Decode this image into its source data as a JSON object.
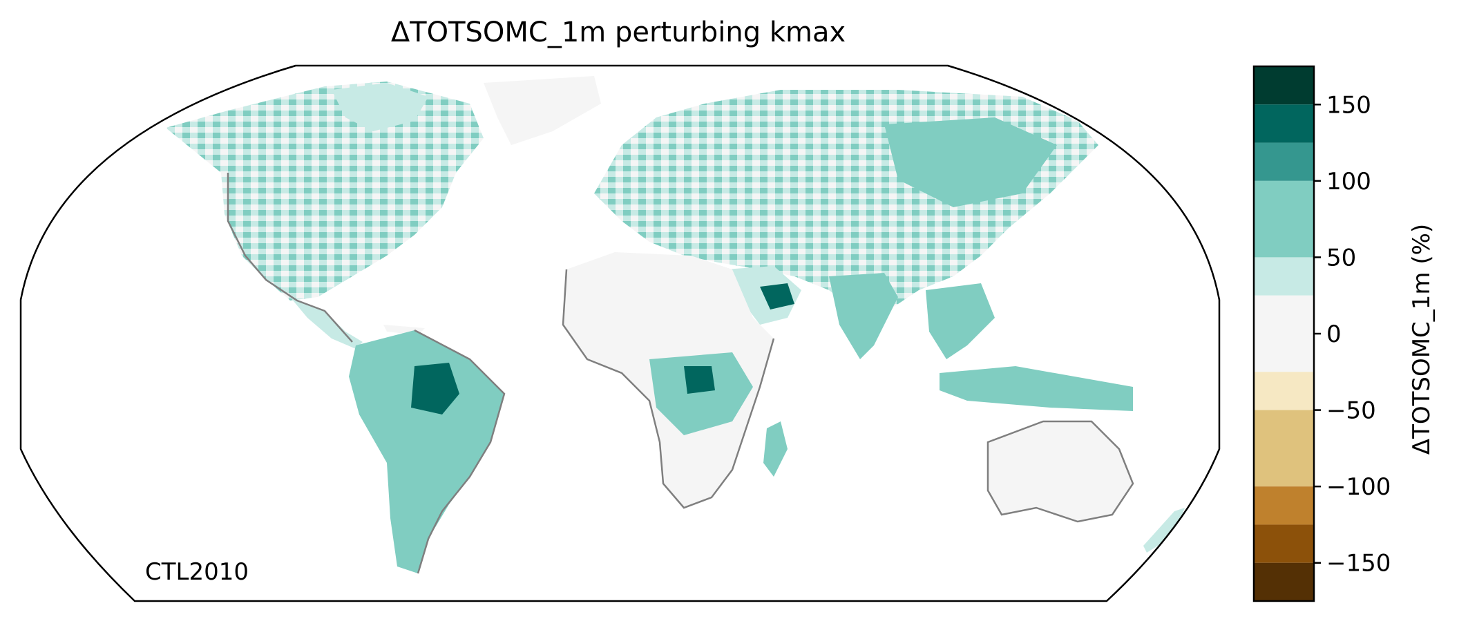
{
  "title": "ΔTOTSOMC_1m perturbing kmax",
  "corner_label": "CTL2010",
  "colorbar": {
    "label": "ΔTOTSOMC_1m (%)",
    "range": [
      -175,
      175
    ],
    "ticks": [
      {
        "value": 150,
        "label": "150"
      },
      {
        "value": 100,
        "label": "100"
      },
      {
        "value": 50,
        "label": "50"
      },
      {
        "value": 0,
        "label": "0"
      },
      {
        "value": -50,
        "label": "−50"
      },
      {
        "value": -100,
        "label": "−100"
      },
      {
        "value": -150,
        "label": "−150"
      }
    ],
    "bins": [
      {
        "from": 150,
        "to": 175,
        "color": "#003c30"
      },
      {
        "from": 125,
        "to": 150,
        "color": "#01665e"
      },
      {
        "from": 100,
        "to": 125,
        "color": "#35978f"
      },
      {
        "from": 50,
        "to": 100,
        "color": "#80cdc1"
      },
      {
        "from": 25,
        "to": 50,
        "color": "#c7eae5"
      },
      {
        "from": -25,
        "to": 25,
        "color": "#f5f5f5"
      },
      {
        "from": -50,
        "to": -25,
        "color": "#f6e8c3"
      },
      {
        "from": -100,
        "to": -50,
        "color": "#dfc27d"
      },
      {
        "from": -125,
        "to": -100,
        "color": "#bf812d"
      },
      {
        "from": -150,
        "to": -125,
        "color": "#8c510a"
      },
      {
        "from": -175,
        "to": -150,
        "color": "#543005"
      }
    ]
  },
  "map": {
    "projection": "robinson",
    "coastline_color": "#7f7f7f",
    "border_color": "#c0c0c0",
    "ocean_color": "#ffffff"
  }
}
